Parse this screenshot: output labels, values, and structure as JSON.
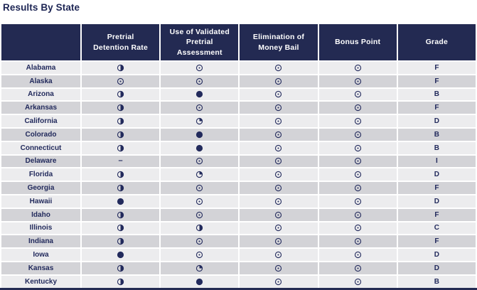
{
  "title": "Results By State",
  "colors": {
    "navy": "#232a52",
    "text_navy": "#222a5c",
    "row_light": "#ececee",
    "row_dark": "#d3d3d7",
    "header_text": "#ffffff"
  },
  "icon_legend": {
    "empty": "harvey-ball-empty",
    "quarter": "harvey-ball-quarter",
    "half": "harvey-ball-half",
    "full": "harvey-ball-full",
    "dash": "dash"
  },
  "table": {
    "columns": [
      "",
      "Pretrial Detention Rate",
      "Use of Validated Pretrial Assessment",
      "Elimination of Money Bail",
      "Bonus Point",
      "Grade"
    ],
    "rows": [
      {
        "state": "Alabama",
        "pretrial_detention_rate": "half",
        "validated_assessment": "empty",
        "money_bail": "empty",
        "bonus_point": "empty",
        "grade": "F"
      },
      {
        "state": "Alaska",
        "pretrial_detention_rate": "empty",
        "validated_assessment": "empty",
        "money_bail": "empty",
        "bonus_point": "empty",
        "grade": "F"
      },
      {
        "state": "Arizona",
        "pretrial_detention_rate": "half",
        "validated_assessment": "full",
        "money_bail": "empty",
        "bonus_point": "empty",
        "grade": "B"
      },
      {
        "state": "Arkansas",
        "pretrial_detention_rate": "half",
        "validated_assessment": "empty",
        "money_bail": "empty",
        "bonus_point": "empty",
        "grade": "F"
      },
      {
        "state": "California",
        "pretrial_detention_rate": "half",
        "validated_assessment": "quarter",
        "money_bail": "empty",
        "bonus_point": "empty",
        "grade": "D"
      },
      {
        "state": "Colorado",
        "pretrial_detention_rate": "half",
        "validated_assessment": "full",
        "money_bail": "empty",
        "bonus_point": "empty",
        "grade": "B"
      },
      {
        "state": "Connecticut",
        "pretrial_detention_rate": "half",
        "validated_assessment": "full",
        "money_bail": "empty",
        "bonus_point": "empty",
        "grade": "B"
      },
      {
        "state": "Delaware",
        "pretrial_detention_rate": "dash",
        "validated_assessment": "empty",
        "money_bail": "empty",
        "bonus_point": "empty",
        "grade": "I"
      },
      {
        "state": "Florida",
        "pretrial_detention_rate": "half",
        "validated_assessment": "quarter",
        "money_bail": "empty",
        "bonus_point": "empty",
        "grade": "D"
      },
      {
        "state": "Georgia",
        "pretrial_detention_rate": "half",
        "validated_assessment": "empty",
        "money_bail": "empty",
        "bonus_point": "empty",
        "grade": "F"
      },
      {
        "state": "Hawaii",
        "pretrial_detention_rate": "full",
        "validated_assessment": "empty",
        "money_bail": "empty",
        "bonus_point": "empty",
        "grade": "D"
      },
      {
        "state": "Idaho",
        "pretrial_detention_rate": "half",
        "validated_assessment": "empty",
        "money_bail": "empty",
        "bonus_point": "empty",
        "grade": "F"
      },
      {
        "state": "Illinois",
        "pretrial_detention_rate": "half",
        "validated_assessment": "half",
        "money_bail": "empty",
        "bonus_point": "empty",
        "grade": "C"
      },
      {
        "state": "Indiana",
        "pretrial_detention_rate": "half",
        "validated_assessment": "empty",
        "money_bail": "empty",
        "bonus_point": "empty",
        "grade": "F"
      },
      {
        "state": "Iowa",
        "pretrial_detention_rate": "full",
        "validated_assessment": "empty",
        "money_bail": "empty",
        "bonus_point": "empty",
        "grade": "D"
      },
      {
        "state": "Kansas",
        "pretrial_detention_rate": "half",
        "validated_assessment": "quarter",
        "money_bail": "empty",
        "bonus_point": "empty",
        "grade": "D"
      },
      {
        "state": "Kentucky",
        "pretrial_detention_rate": "half",
        "validated_assessment": "full",
        "money_bail": "empty",
        "bonus_point": "empty",
        "grade": "B"
      }
    ]
  }
}
